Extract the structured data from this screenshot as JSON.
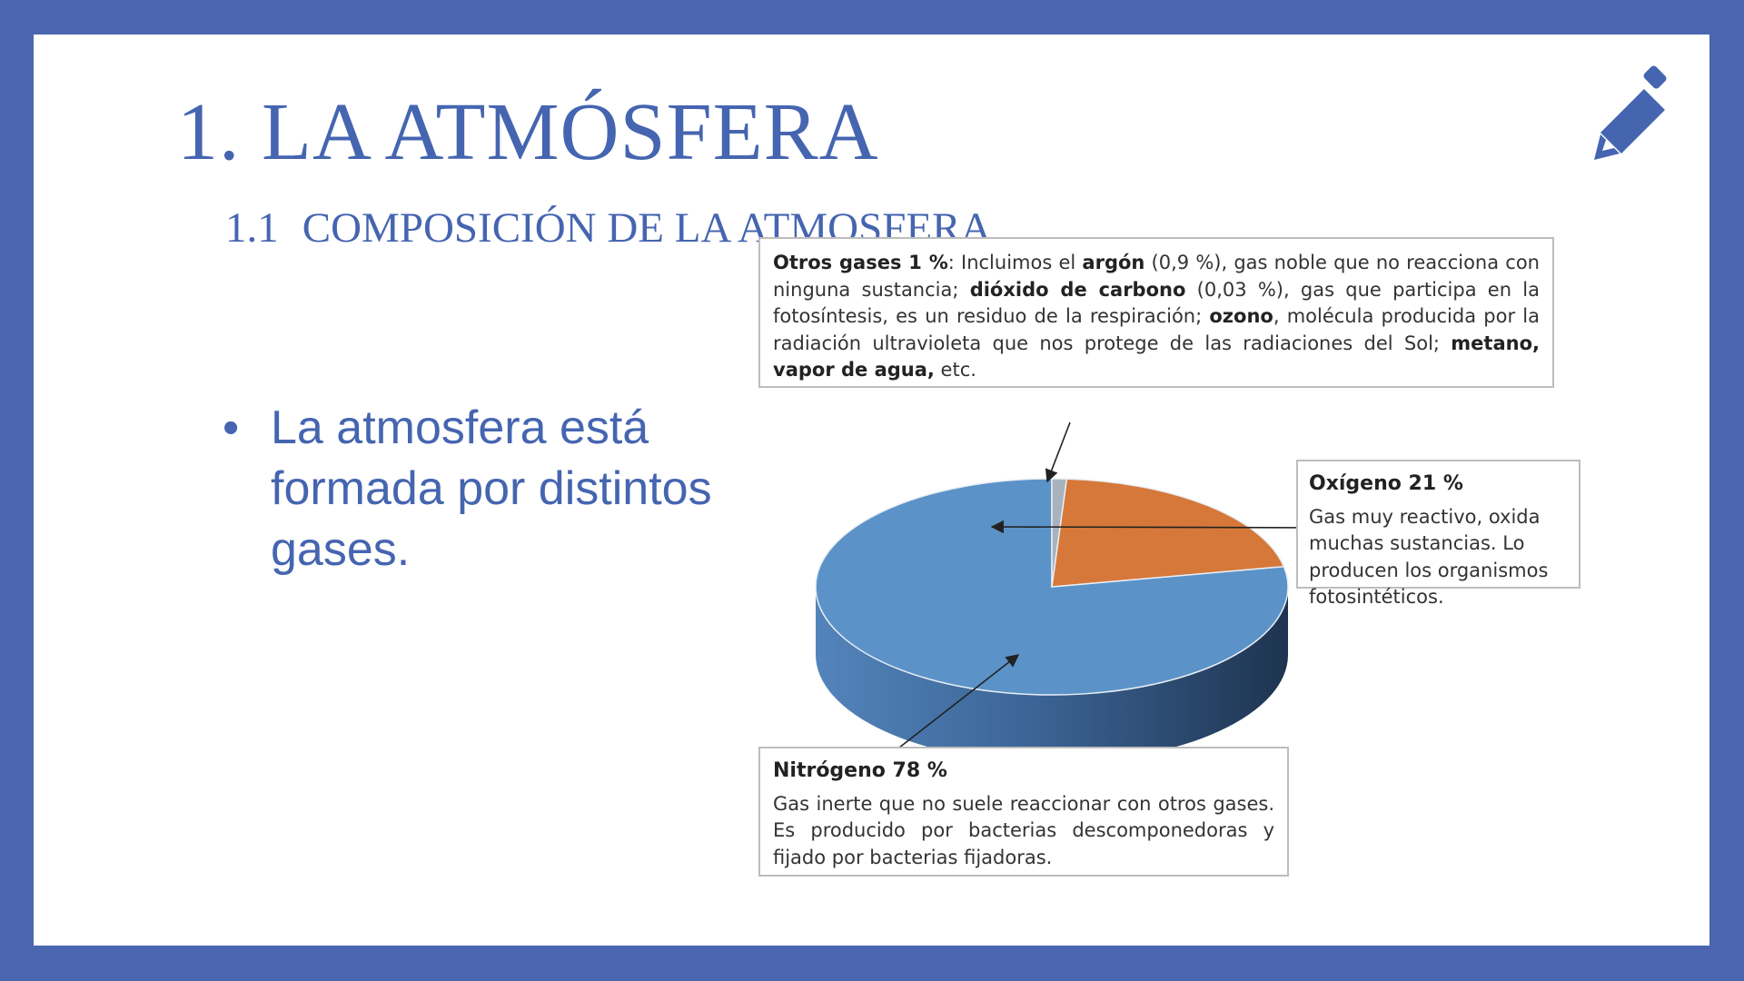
{
  "slide": {
    "title": "1. LA ATMÓSFERA",
    "subtitle_number": "1.1",
    "subtitle_text": "COMPOSICIÓN DE LA ATMOSFERA",
    "bullet_text": "La atmosfera está formada por distintos gases.",
    "bullet_symbol": "•",
    "icon": "pencil-icon",
    "colors": {
      "frame": "#4a66b0",
      "text": "#4565b0"
    }
  },
  "callouts": {
    "otros": {
      "head": "Otros gases 1 %",
      "p1": ": Incluimos el ",
      "argon": "argón",
      "p2": " (0,9 %), gas noble que no reacciona con ninguna sustancia; ",
      "co2": "dióxido de carbono",
      "p3": " (0,03 %), gas que participa en la fotosíntesis, es un residuo de la respiración; ",
      "ozono": "ozono",
      "p4": ", molécula producida por la radiación ultravioleta que nos protege de las radiaciones del Sol; ",
      "metano": "metano, vapor de agua,",
      "p5": " etc."
    },
    "oxigeno": {
      "head": "Oxígeno 21 %",
      "body": "Gas muy reactivo, oxida muchas sustancias. Lo producen los organismos fotosintéticos."
    },
    "nitrogeno": {
      "head": "Nitrógeno 78 %",
      "body": "Gas inerte que no suele reaccionar con otros gases. Es producido por bacterias descomponedoras y fijado por bacterias fijadoras."
    }
  },
  "chart_data": {
    "type": "pie",
    "title": "",
    "slices": [
      {
        "label": "Nitrógeno",
        "value": 78,
        "color": "#5b93c8"
      },
      {
        "label": "Oxígeno",
        "value": 21,
        "color": "#d6783a"
      },
      {
        "label": "Otros gases",
        "value": 1,
        "color": "#a9b3bd"
      }
    ]
  }
}
